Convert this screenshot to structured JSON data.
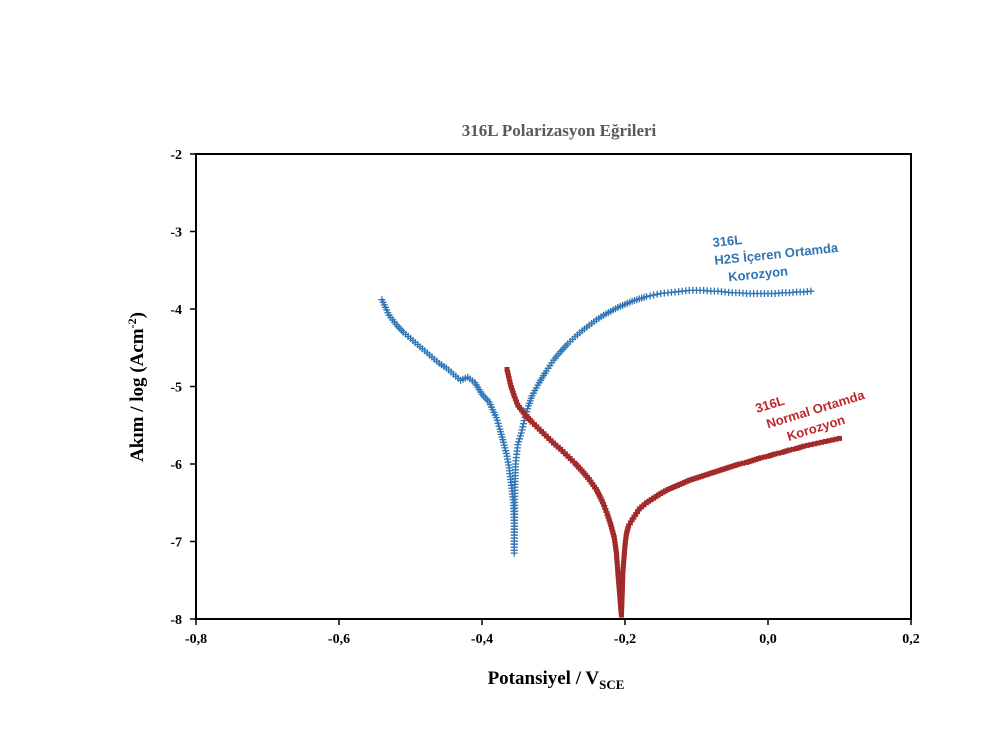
{
  "chart_data": {
    "type": "scatter",
    "title": "316L Polarizasyon Eğrileri",
    "xlabel": "Potansiyel / V",
    "xlabel_sub": "SCE",
    "ylabel": "Akım / log (Acm",
    "ylabel_sup": "-2",
    "ylabel_end": ")",
    "xlim": [
      -0.8,
      0.2
    ],
    "ylim": [
      -8,
      -2
    ],
    "xticks": [
      -0.8,
      -0.6,
      -0.4,
      -0.2,
      0.0,
      0.2
    ],
    "xtick_labels": [
      "-0,8",
      "-0,6",
      "-0,4",
      "-0,2",
      "0,0",
      "0,2"
    ],
    "yticks": [
      -2,
      -3,
      -4,
      -5,
      -6,
      -7,
      -8
    ],
    "ytick_labels": [
      "-2",
      "-3",
      "-4",
      "-5",
      "-6",
      "-7",
      "-8"
    ],
    "grid": false,
    "series": [
      {
        "name": "316L H2S İçeren Ortamda Korozyon",
        "annotation": [
          "316L",
          "H2S İçeren Ortamda",
          "Korozyon"
        ],
        "color": "#2e75b6",
        "marker": "plus",
        "x": [
          -0.54,
          -0.53,
          -0.52,
          -0.51,
          -0.5,
          -0.49,
          -0.48,
          -0.47,
          -0.46,
          -0.45,
          -0.44,
          -0.43,
          -0.42,
          -0.41,
          -0.4,
          -0.39,
          -0.38,
          -0.375,
          -0.37,
          -0.365,
          -0.362,
          -0.36,
          -0.358,
          -0.356,
          -0.355,
          -0.355,
          -0.354,
          -0.353,
          -0.35,
          -0.345,
          -0.34,
          -0.335,
          -0.33,
          -0.32,
          -0.31,
          -0.3,
          -0.29,
          -0.28,
          -0.27,
          -0.26,
          -0.25,
          -0.24,
          -0.23,
          -0.22,
          -0.21,
          -0.2,
          -0.19,
          -0.18,
          -0.17,
          -0.16,
          -0.15,
          -0.14,
          -0.13,
          -0.12,
          -0.11,
          -0.1,
          -0.09,
          -0.08,
          -0.07,
          -0.06,
          -0.05,
          -0.04,
          -0.03,
          -0.02,
          -0.01,
          0.0,
          0.01,
          0.02,
          0.03,
          0.04,
          0.05,
          0.06
        ],
        "y": [
          -3.88,
          -4.08,
          -4.2,
          -4.3,
          -4.38,
          -4.46,
          -4.54,
          -4.62,
          -4.7,
          -4.76,
          -4.84,
          -4.92,
          -4.88,
          -4.95,
          -5.1,
          -5.2,
          -5.4,
          -5.55,
          -5.72,
          -5.9,
          -6.05,
          -6.2,
          -6.35,
          -6.5,
          -6.8,
          -7.15,
          -6.3,
          -6.0,
          -5.75,
          -5.6,
          -5.4,
          -5.25,
          -5.12,
          -4.95,
          -4.8,
          -4.66,
          -4.55,
          -4.45,
          -4.36,
          -4.28,
          -4.21,
          -4.14,
          -4.08,
          -4.03,
          -3.98,
          -3.94,
          -3.9,
          -3.87,
          -3.84,
          -3.82,
          -3.8,
          -3.79,
          -3.78,
          -3.77,
          -3.76,
          -3.76,
          -3.76,
          -3.77,
          -3.77,
          -3.78,
          -3.79,
          -3.79,
          -3.8,
          -3.8,
          -3.8,
          -3.8,
          -3.8,
          -3.79,
          -3.79,
          -3.78,
          -3.78,
          -3.77
        ]
      },
      {
        "name": "316L Normal Ortamda Korozyon",
        "annotation": [
          "316L",
          "Normal Ortamda",
          "Korozyon"
        ],
        "color": "#a32a2a",
        "marker": "square",
        "x": [
          -0.365,
          -0.36,
          -0.355,
          -0.35,
          -0.34,
          -0.33,
          -0.32,
          -0.31,
          -0.3,
          -0.29,
          -0.28,
          -0.27,
          -0.26,
          -0.25,
          -0.24,
          -0.235,
          -0.23,
          -0.225,
          -0.22,
          -0.215,
          -0.212,
          -0.21,
          -0.208,
          -0.206,
          -0.205,
          -0.204,
          -0.203,
          -0.2,
          -0.198,
          -0.195,
          -0.19,
          -0.185,
          -0.18,
          -0.17,
          -0.16,
          -0.15,
          -0.14,
          -0.13,
          -0.12,
          -0.11,
          -0.1,
          -0.09,
          -0.08,
          -0.07,
          -0.06,
          -0.05,
          -0.04,
          -0.03,
          -0.02,
          -0.01,
          0.0,
          0.01,
          0.02,
          0.03,
          0.04,
          0.05,
          0.06,
          0.07,
          0.08,
          0.09,
          0.1
        ],
        "y": [
          -4.78,
          -4.98,
          -5.12,
          -5.24,
          -5.36,
          -5.46,
          -5.55,
          -5.64,
          -5.73,
          -5.81,
          -5.9,
          -5.99,
          -6.09,
          -6.2,
          -6.33,
          -6.42,
          -6.52,
          -6.64,
          -6.78,
          -6.95,
          -7.15,
          -7.4,
          -7.62,
          -7.85,
          -7.95,
          -7.7,
          -7.4,
          -7.05,
          -6.9,
          -6.8,
          -6.72,
          -6.65,
          -6.58,
          -6.5,
          -6.44,
          -6.38,
          -6.33,
          -6.29,
          -6.25,
          -6.21,
          -6.18,
          -6.15,
          -6.12,
          -6.09,
          -6.06,
          -6.03,
          -6.0,
          -5.98,
          -5.95,
          -5.92,
          -5.9,
          -5.87,
          -5.85,
          -5.82,
          -5.8,
          -5.77,
          -5.75,
          -5.73,
          -5.71,
          -5.69,
          -5.67
        ]
      }
    ]
  }
}
